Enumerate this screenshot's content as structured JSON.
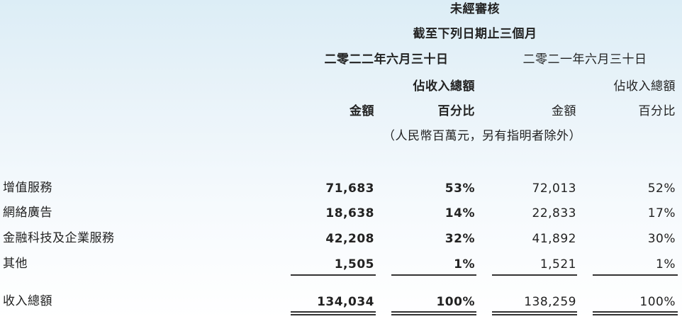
{
  "header": {
    "unaudited": "未經審核",
    "period": "截至下列日期止三個月",
    "date_2022": "二零二二年六月三十日",
    "date_2021": "二零二一年六月三十日",
    "pct_of_revenue": "佔收入總額",
    "amount": "金額",
    "percentage": "百分比",
    "unit_note": "（人民幣百萬元，另有指明者除外）"
  },
  "rows": [
    {
      "label": "增值服務",
      "amt_2022": "71,683",
      "pct_2022": "53%",
      "amt_2021": "72,013",
      "pct_2021": "52%"
    },
    {
      "label": "網絡廣告",
      "amt_2022": "18,638",
      "pct_2022": "14%",
      "amt_2021": "22,833",
      "pct_2021": "17%"
    },
    {
      "label": "金融科技及企業服務",
      "amt_2022": "42,208",
      "pct_2022": "32%",
      "amt_2021": "41,892",
      "pct_2021": "30%"
    },
    {
      "label": "其他",
      "amt_2022": "1,505",
      "pct_2022": "1%",
      "amt_2021": "1,521",
      "pct_2021": "1%"
    }
  ],
  "total": {
    "label": "收入總額",
    "amt_2022": "134,034",
    "pct_2022": "100%",
    "amt_2021": "138,259",
    "pct_2021": "100%"
  }
}
